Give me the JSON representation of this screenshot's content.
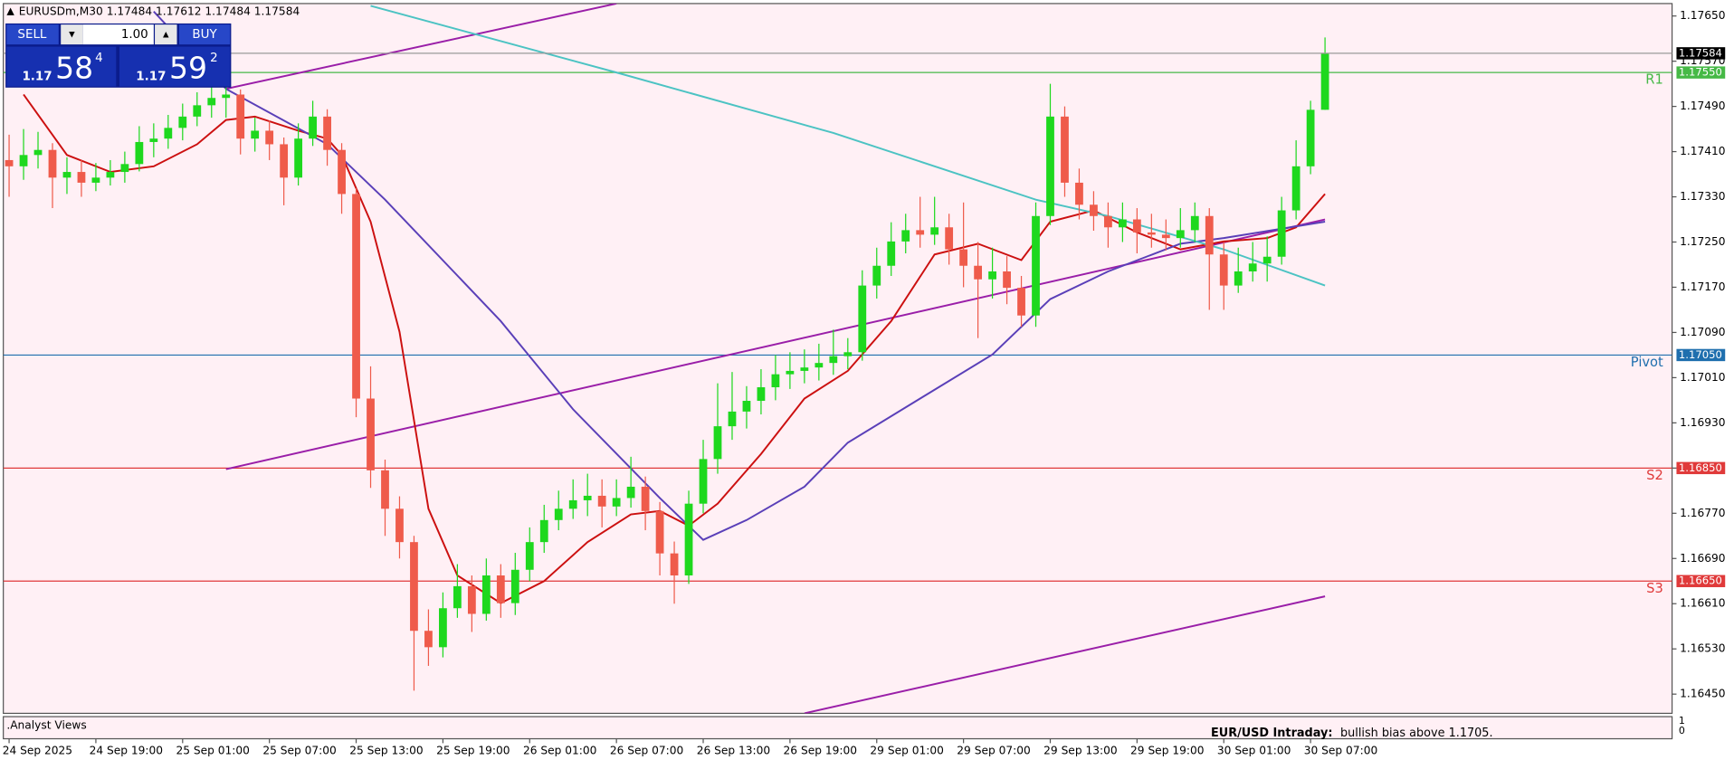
{
  "chart_data": {
    "type": "candlestick",
    "symbol": "EURUSDm,M30",
    "bull_color": "#1ed81e",
    "bear_color": "#ef5b4b",
    "xlim": [
      -0.4,
      115
    ],
    "ylim": [
      1.16416,
      1.17672
    ],
    "xticks": [
      {
        "value": 0,
        "label": "24 Sep 2025"
      },
      {
        "value": 6,
        "label": "24 Sep 19:00"
      },
      {
        "value": 12,
        "label": "25 Sep 01:00"
      },
      {
        "value": 18,
        "label": "25 Sep 07:00"
      },
      {
        "value": 24,
        "label": "25 Sep 13:00"
      },
      {
        "value": 30,
        "label": "25 Sep 19:00"
      },
      {
        "value": 36,
        "label": "26 Sep 01:00"
      },
      {
        "value": 42,
        "label": "26 Sep 07:00"
      },
      {
        "value": 48,
        "label": "26 Sep 13:00"
      },
      {
        "value": 54,
        "label": "26 Sep 19:00"
      },
      {
        "value": 60,
        "label": "29 Sep 01:00"
      },
      {
        "value": 66,
        "label": "29 Sep 07:00"
      },
      {
        "value": 72,
        "label": "29 Sep 13:00"
      },
      {
        "value": 78,
        "label": "29 Sep 19:00"
      },
      {
        "value": 84,
        "label": "30 Sep 01:00"
      },
      {
        "value": 90,
        "label": "30 Sep 07:00"
      }
    ],
    "yticks": [
      {
        "value": 1.1765,
        "label": "1.17650"
      },
      {
        "value": 1.1757,
        "label": "1.17570"
      },
      {
        "value": 1.1749,
        "label": "1.17490"
      },
      {
        "value": 1.1741,
        "label": "1.17410"
      },
      {
        "value": 1.1733,
        "label": "1.17330"
      },
      {
        "value": 1.1725,
        "label": "1.17250"
      },
      {
        "value": 1.1717,
        "label": "1.17170"
      },
      {
        "value": 1.1709,
        "label": "1.17090"
      },
      {
        "value": 1.1701,
        "label": "1.17010"
      },
      {
        "value": 1.1693,
        "label": "1.16930"
      },
      {
        "value": 1.1685,
        "label": "1.16850"
      },
      {
        "value": 1.1677,
        "label": "1.16770"
      },
      {
        "value": 1.1669,
        "label": "1.16690"
      },
      {
        "value": 1.1661,
        "label": "1.16610"
      },
      {
        "value": 1.1653,
        "label": "1.16530"
      },
      {
        "value": 1.1645,
        "label": "1.16450"
      }
    ],
    "candles": [
      [
        1.17395,
        1.1744,
        1.1733,
        1.17384
      ],
      [
        1.17384,
        1.1745,
        1.1736,
        1.17404
      ],
      [
        1.17404,
        1.17445,
        1.1738,
        1.17413
      ],
      [
        1.17413,
        1.17425,
        1.1731,
        1.17364
      ],
      [
        1.17364,
        1.174,
        1.17335,
        1.17374
      ],
      [
        1.17374,
        1.17395,
        1.1733,
        1.17355
      ],
      [
        1.17355,
        1.1739,
        1.1734,
        1.17364
      ],
      [
        1.17364,
        1.17395,
        1.1735,
        1.17374
      ],
      [
        1.17374,
        1.1741,
        1.17355,
        1.17388
      ],
      [
        1.17388,
        1.17455,
        1.17375,
        1.17427
      ],
      [
        1.17427,
        1.1746,
        1.174,
        1.17433
      ],
      [
        1.17433,
        1.17475,
        1.17415,
        1.17452
      ],
      [
        1.17452,
        1.17495,
        1.1743,
        1.17472
      ],
      [
        1.17472,
        1.17515,
        1.17455,
        1.17492
      ],
      [
        1.17492,
        1.17525,
        1.1747,
        1.17505
      ],
      [
        1.17505,
        1.1753,
        1.1747,
        1.17511
      ],
      [
        1.17511,
        1.1752,
        1.17405,
        1.17433
      ],
      [
        1.17433,
        1.1747,
        1.1741,
        1.17447
      ],
      [
        1.17447,
        1.17465,
        1.17395,
        1.17423
      ],
      [
        1.17423,
        1.17435,
        1.17315,
        1.17364
      ],
      [
        1.17364,
        1.1746,
        1.1735,
        1.17433
      ],
      [
        1.17433,
        1.175,
        1.1742,
        1.17472
      ],
      [
        1.17472,
        1.17485,
        1.17385,
        1.17413
      ],
      [
        1.17413,
        1.17425,
        1.173,
        1.17335
      ],
      [
        1.17335,
        1.17345,
        1.1694,
        1.16973
      ],
      [
        1.16973,
        1.1703,
        1.16815,
        1.16846
      ],
      [
        1.16846,
        1.16865,
        1.1673,
        1.16778
      ],
      [
        1.16778,
        1.168,
        1.1669,
        1.16719
      ],
      [
        1.16719,
        1.1673,
        1.16456,
        1.16562
      ],
      [
        1.16562,
        1.166,
        1.165,
        1.16533
      ],
      [
        1.16533,
        1.1663,
        1.16515,
        1.16602
      ],
      [
        1.16602,
        1.1668,
        1.16585,
        1.16641
      ],
      [
        1.16641,
        1.1666,
        1.1656,
        1.16592
      ],
      [
        1.16592,
        1.1669,
        1.1658,
        1.1666
      ],
      [
        1.1666,
        1.1668,
        1.16585,
        1.16611
      ],
      [
        1.16611,
        1.167,
        1.1659,
        1.1667
      ],
      [
        1.1667,
        1.16745,
        1.1665,
        1.16719
      ],
      [
        1.16719,
        1.16785,
        1.167,
        1.16758
      ],
      [
        1.16758,
        1.1681,
        1.1674,
        1.16778
      ],
      [
        1.16778,
        1.1683,
        1.1676,
        1.16793
      ],
      [
        1.16793,
        1.1684,
        1.16765,
        1.16801
      ],
      [
        1.16801,
        1.1683,
        1.16745,
        1.16782
      ],
      [
        1.16782,
        1.1683,
        1.16765,
        1.16797
      ],
      [
        1.16797,
        1.1687,
        1.1678,
        1.16817
      ],
      [
        1.16817,
        1.16835,
        1.1674,
        1.16774
      ],
      [
        1.16774,
        1.1679,
        1.1666,
        1.16699
      ],
      [
        1.16699,
        1.1672,
        1.1661,
        1.1666
      ],
      [
        1.1666,
        1.1681,
        1.16645,
        1.16787
      ],
      [
        1.16787,
        1.169,
        1.1677,
        1.16866
      ],
      [
        1.16866,
        1.17,
        1.1684,
        1.16924
      ],
      [
        1.16924,
        1.1702,
        1.169,
        1.1695
      ],
      [
        1.1695,
        1.16995,
        1.1692,
        1.16969
      ],
      [
        1.16969,
        1.17025,
        1.16945,
        1.16993
      ],
      [
        1.16993,
        1.1705,
        1.1697,
        1.17016
      ],
      [
        1.17016,
        1.17055,
        1.1699,
        1.17022
      ],
      [
        1.17022,
        1.1706,
        1.17,
        1.17028
      ],
      [
        1.17028,
        1.1707,
        1.17005,
        1.17036
      ],
      [
        1.17036,
        1.17095,
        1.17015,
        1.17048
      ],
      [
        1.17048,
        1.1708,
        1.17025,
        1.17055
      ],
      [
        1.17055,
        1.172,
        1.1704,
        1.17173
      ],
      [
        1.17173,
        1.1724,
        1.1715,
        1.17208
      ],
      [
        1.17208,
        1.17285,
        1.1719,
        1.17251
      ],
      [
        1.17251,
        1.173,
        1.1723,
        1.17271
      ],
      [
        1.17271,
        1.1733,
        1.1724,
        1.17263
      ],
      [
        1.17263,
        1.1733,
        1.17245,
        1.17276
      ],
      [
        1.17276,
        1.173,
        1.1721,
        1.17237
      ],
      [
        1.17237,
        1.1732,
        1.1717,
        1.17208
      ],
      [
        1.17208,
        1.1725,
        1.1708,
        1.17184
      ],
      [
        1.17184,
        1.1724,
        1.1715,
        1.17198
      ],
      [
        1.17198,
        1.17225,
        1.1714,
        1.17169
      ],
      [
        1.17169,
        1.1719,
        1.171,
        1.1712
      ],
      [
        1.1712,
        1.1732,
        1.171,
        1.17296
      ],
      [
        1.17296,
        1.1753,
        1.1728,
        1.17472
      ],
      [
        1.17472,
        1.1749,
        1.1733,
        1.17355
      ],
      [
        1.17355,
        1.1738,
        1.1729,
        1.17316
      ],
      [
        1.17316,
        1.1734,
        1.1727,
        1.17296
      ],
      [
        1.17296,
        1.1732,
        1.1724,
        1.17276
      ],
      [
        1.17276,
        1.1732,
        1.1725,
        1.1729
      ],
      [
        1.1729,
        1.1731,
        1.1723,
        1.17267
      ],
      [
        1.17267,
        1.173,
        1.1724,
        1.17263
      ],
      [
        1.17263,
        1.1729,
        1.17235,
        1.17257
      ],
      [
        1.17257,
        1.1731,
        1.1724,
        1.17271
      ],
      [
        1.17271,
        1.1732,
        1.1725,
        1.17296
      ],
      [
        1.17296,
        1.1731,
        1.1713,
        1.17228
      ],
      [
        1.17228,
        1.1725,
        1.1713,
        1.17173
      ],
      [
        1.17173,
        1.1724,
        1.1716,
        1.17198
      ],
      [
        1.17198,
        1.1725,
        1.1718,
        1.17212
      ],
      [
        1.17212,
        1.1726,
        1.1718,
        1.17224
      ],
      [
        1.17224,
        1.1733,
        1.1721,
        1.17306
      ],
      [
        1.17306,
        1.1743,
        1.1729,
        1.17384
      ],
      [
        1.17384,
        1.175,
        1.1737,
        1.17484
      ],
      [
        1.17484,
        1.17612,
        1.17484,
        1.17584
      ]
    ],
    "indicators": [
      {
        "color": "#cc1010",
        "x": [
          1,
          4,
          7,
          10,
          13,
          15,
          17,
          20,
          22,
          23,
          25,
          27,
          29,
          31,
          34,
          37,
          40,
          43,
          45,
          47,
          49,
          52,
          55,
          58,
          61,
          64,
          67,
          70,
          72,
          75,
          78,
          81,
          84,
          87,
          89,
          91
        ],
        "values": [
          1.17511,
          1.17404,
          1.17374,
          1.17384,
          1.17423,
          1.17466,
          1.17472,
          1.17447,
          1.17433,
          1.17404,
          1.17286,
          1.17091,
          1.16778,
          1.1666,
          1.16611,
          1.1665,
          1.16719,
          1.16768,
          1.16774,
          1.16748,
          1.16787,
          1.16875,
          1.16973,
          1.17022,
          1.1711,
          1.17228,
          1.17247,
          1.17218,
          1.17286,
          1.17306,
          1.17267,
          1.17237,
          1.17251,
          1.17257,
          1.17276,
          1.17335
        ]
      },
      {
        "color": "#5a3fb8",
        "x": [
          10,
          15,
          22,
          26,
          34,
          39,
          45,
          48,
          51,
          55,
          58,
          63,
          68,
          72,
          76,
          81,
          84,
          91
        ],
        "values": [
          1.17658,
          1.17521,
          1.17423,
          1.17325,
          1.1711,
          1.16954,
          1.16797,
          1.16723,
          1.16758,
          1.16817,
          1.16895,
          1.16973,
          1.17051,
          1.17149,
          1.17198,
          1.17247,
          1.17257,
          1.17286
        ]
      },
      {
        "color": "#4cc3c3",
        "x": [
          25,
          42,
          57,
          71,
          76,
          84,
          91
        ],
        "values": [
          1.17668,
          1.1755,
          1.17443,
          1.17325,
          1.17296,
          1.17237,
          1.17173
        ]
      }
    ],
    "trendlines": [
      {
        "color": "#9a1ea8",
        "x": [
          15,
          42
        ],
        "values": [
          1.17521,
          1.17672
        ]
      },
      {
        "color": "#9a1ea8",
        "x": [
          15,
          91
        ],
        "values": [
          1.16848,
          1.1729
        ]
      },
      {
        "color": "#9a1ea8",
        "x": [
          55,
          91
        ],
        "values": [
          1.16416,
          1.16623
        ]
      }
    ],
    "levels": [
      {
        "label": "R1",
        "value": 1.1755,
        "value_label": "1.17550",
        "color": "#46b946"
      },
      {
        "label": "Pivot",
        "value": 1.1705,
        "value_label": "1.17050",
        "color": "#1f6fae"
      },
      {
        "label": "S2",
        "value": 1.1685,
        "value_label": "1.16850",
        "color": "#e03a3a"
      },
      {
        "label": "S3",
        "value": 1.1665,
        "value_label": "1.16650",
        "color": "#e03a3a"
      }
    ],
    "price_line_color": "#9a9a9a"
  },
  "trade_panel": {
    "sell": "SELL",
    "buy": "BUY",
    "lot": "1.00",
    "bid": {
      "big": "1.17",
      "pips": "58",
      "frac": "4"
    },
    "ask": {
      "big": "1.17",
      "pips": "59",
      "frac": "2"
    }
  },
  "indicator_window": {
    "name": ".Analyst Views",
    "heading": "EUR/USD Intraday:",
    "text": "bullish bias above 1.1705.",
    "scale_top": "1",
    "scale_bottom": "0"
  }
}
